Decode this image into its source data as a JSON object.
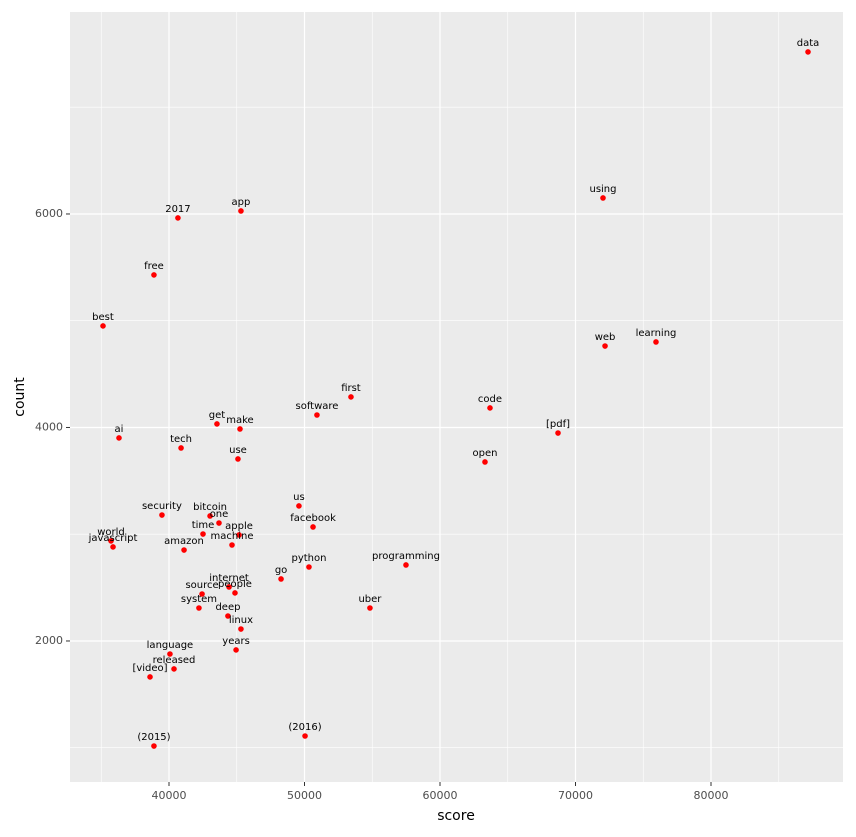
{
  "chart_data": {
    "type": "scatter",
    "xlabel": "score",
    "ylabel": "count",
    "labels": [
      "data",
      "using",
      "2017",
      "app",
      "free",
      "best",
      "web",
      "learning",
      "first",
      "code",
      "software",
      "[pdf]",
      "get",
      "make",
      "ai",
      "tech",
      "use",
      "open",
      "us",
      "security",
      "bitcoin",
      "one",
      "facebook",
      "time",
      "apple",
      "world",
      "javascript",
      "machine",
      "amazon",
      "python",
      "programming",
      "go",
      "internet",
      "people",
      "source",
      "system",
      "uber",
      "deep",
      "linux",
      "years",
      "language",
      "released",
      "[video]",
      "(2016)",
      "(2015)"
    ],
    "x": [
      87160,
      72030,
      40660,
      45310,
      38890,
      35130,
      72180,
      75940,
      53430,
      63690,
      50920,
      68710,
      43540,
      45240,
      36310,
      40890,
      45090,
      63320,
      49590,
      39480,
      43030,
      43690,
      50630,
      42510,
      45170,
      35720,
      35870,
      44650,
      41110,
      50330,
      57490,
      48270,
      44430,
      44870,
      42440,
      42210,
      54830,
      44350,
      45310,
      44950,
      40070,
      40370,
      38600,
      50040,
      38890
    ],
    "y": [
      7518,
      6150,
      5963,
      6028,
      5429,
      4951,
      4763,
      4801,
      4286,
      4183,
      4117,
      3948,
      4033,
      3986,
      3902,
      3808,
      3705,
      3677,
      3265,
      3180,
      3171,
      3105,
      3068,
      3002,
      2993,
      2937,
      2881,
      2899,
      2852,
      2693,
      2712,
      2581,
      2506,
      2450,
      2440,
      2309,
      2309,
      2234,
      2112,
      1916,
      1878,
      1738,
      1663,
      1110,
      1016
    ],
    "color": "#ff0000",
    "xlim": [
      32694,
      89742
    ],
    "ylim": [
      679,
      7892
    ],
    "xticks": [
      40000,
      50000,
      60000,
      70000,
      80000
    ],
    "yticks": [
      2000,
      4000,
      6000
    ],
    "grid": true
  }
}
